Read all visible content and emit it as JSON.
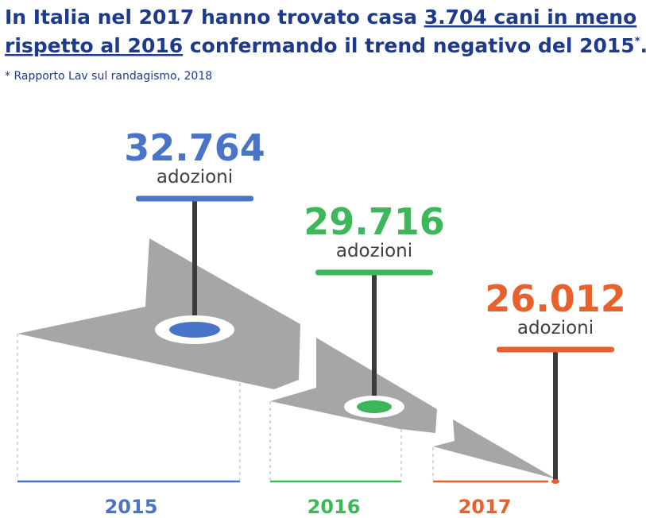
{
  "header": {
    "title_parts": [
      "In Italia nel 2017 hanno trovato casa ",
      "3.704 cani in meno",
      "rispetto al 2016",
      " confermando il trend negativo del 2015",
      "*",
      "."
    ],
    "footnote": "* Rapporto Lav sul randagismo, 2018"
  },
  "items": [
    {
      "year": "2015",
      "value": "32.764",
      "unit": "adozioni",
      "color": "#4a74c8"
    },
    {
      "year": "2016",
      "value": "29.716",
      "unit": "adozioni",
      "color": "#3cb85a"
    },
    {
      "year": "2017",
      "value": "26.012",
      "unit": "adozioni",
      "color": "#e8612c"
    }
  ]
}
